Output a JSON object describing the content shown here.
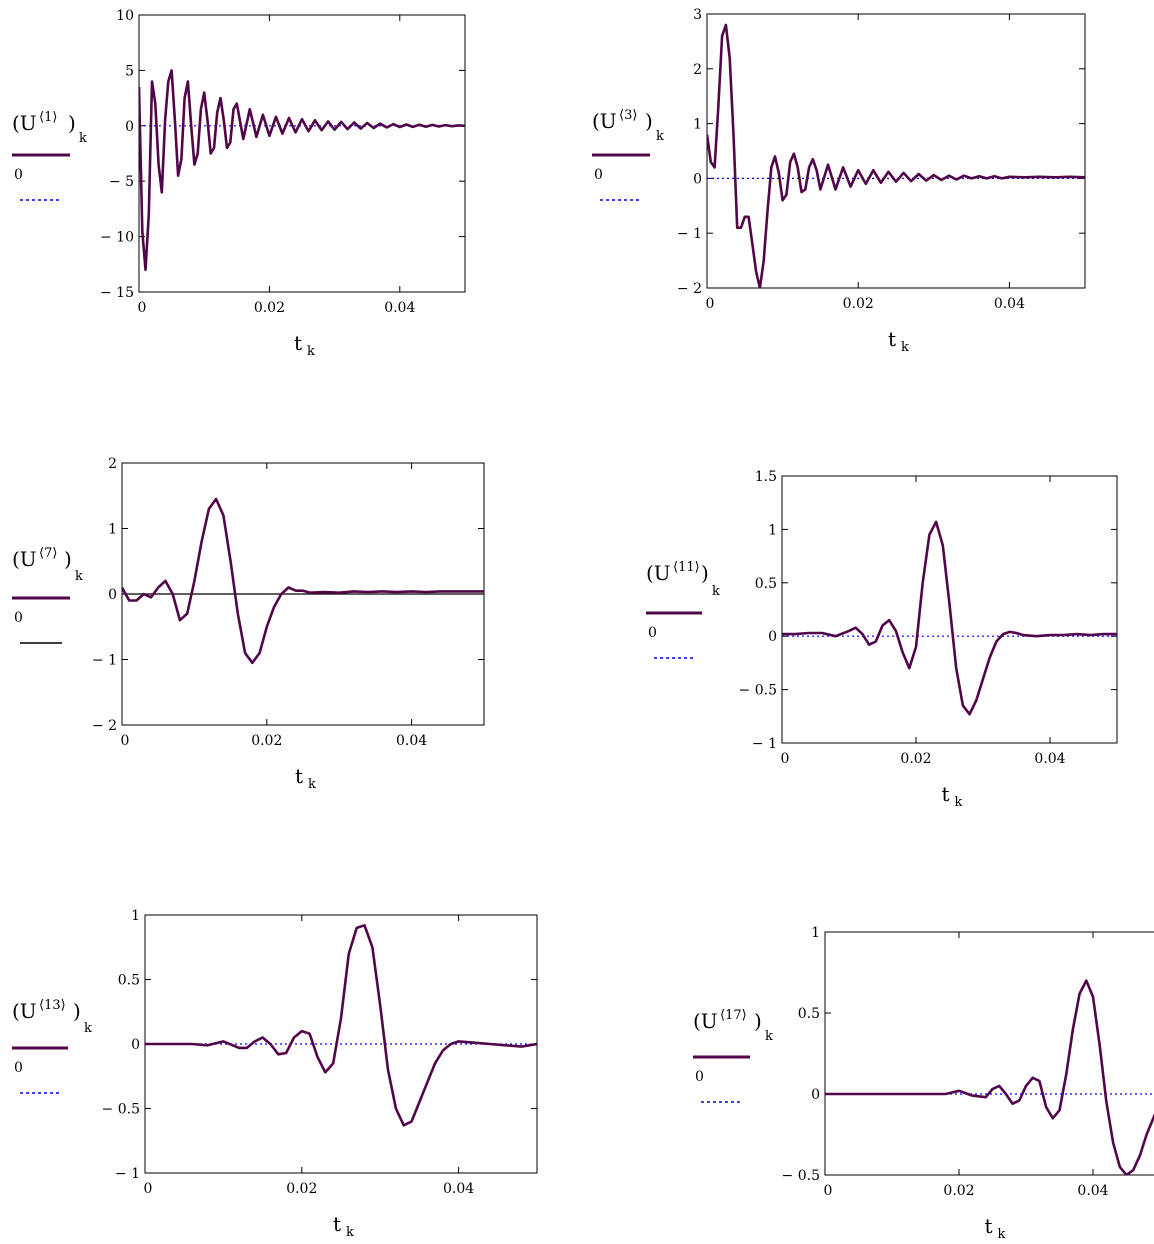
{
  "legend_items": {
    "zero_label": "0"
  },
  "chart_data": [
    {
      "type": "line",
      "series": [
        {
          "name": "(U⟨1⟩)k",
          "color": "#52064a",
          "style": "solid",
          "x": [
            0,
            0.0005,
            0.001,
            0.0015,
            0.002,
            0.0025,
            0.003,
            0.0035,
            0.004,
            0.0045,
            0.005,
            0.0055,
            0.006,
            0.0065,
            0.007,
            0.0075,
            0.008,
            0.0085,
            0.009,
            0.0095,
            0.01,
            0.0105,
            0.011,
            0.0115,
            0.012,
            0.0125,
            0.013,
            0.0135,
            0.014,
            0.0145,
            0.015,
            0.016,
            0.017,
            0.018,
            0.019,
            0.02,
            0.021,
            0.022,
            0.023,
            0.024,
            0.025,
            0.026,
            0.027,
            0.028,
            0.029,
            0.03,
            0.031,
            0.032,
            0.033,
            0.034,
            0.035,
            0.036,
            0.037,
            0.038,
            0.039,
            0.04,
            0.041,
            0.042,
            0.043,
            0.044,
            0.045,
            0.046,
            0.047,
            0.048,
            0.049,
            0.05
          ],
          "y": [
            3.5,
            -9.5,
            -13,
            -8,
            4,
            2,
            -3.5,
            -6,
            0.5,
            4,
            5,
            0.5,
            -4.5,
            -3,
            2.5,
            4,
            0,
            -3.5,
            -2.5,
            1.5,
            3,
            0.5,
            -2.5,
            -2,
            1.2,
            2.5,
            0.5,
            -2,
            -1.5,
            1.5,
            2,
            -1.2,
            1.5,
            -1,
            1,
            -0.9,
            0.8,
            -0.7,
            0.7,
            -0.6,
            0.6,
            -0.5,
            0.5,
            -0.4,
            0.4,
            -0.35,
            0.35,
            -0.3,
            0.3,
            -0.25,
            0.25,
            -0.2,
            0.2,
            -0.15,
            0.15,
            -0.12,
            0.12,
            -0.1,
            0.1,
            -0.08,
            0.08,
            -0.06,
            0.06,
            -0.04,
            0.04,
            0
          ]
        },
        {
          "name": "0",
          "color": "#0000ff",
          "style": "dotted",
          "x": [
            0,
            0.05
          ],
          "y": [
            0,
            0
          ]
        }
      ],
      "xlabel": "tk",
      "ylabel": "(U⟨1⟩)k",
      "xlim": [
        0,
        0.05
      ],
      "ylim": [
        -15,
        10
      ],
      "xticks": [
        "0",
        "0.02",
        "0.04"
      ],
      "yticks": [
        "10",
        "5",
        "0",
        "− 5",
        "− 10",
        "− 15"
      ]
    },
    {
      "type": "line",
      "series": [
        {
          "name": "(U⟨3⟩)k",
          "color": "#52064a",
          "style": "solid",
          "x": [
            0,
            0.0005,
            0.001,
            0.0015,
            0.002,
            0.0025,
            0.003,
            0.0035,
            0.004,
            0.0045,
            0.005,
            0.0055,
            0.006,
            0.0065,
            0.007,
            0.0075,
            0.008,
            0.0085,
            0.009,
            0.0095,
            0.01,
            0.0105,
            0.011,
            0.0115,
            0.012,
            0.0125,
            0.013,
            0.0135,
            0.014,
            0.0145,
            0.015,
            0.016,
            0.017,
            0.018,
            0.019,
            0.02,
            0.021,
            0.022,
            0.023,
            0.024,
            0.025,
            0.026,
            0.027,
            0.028,
            0.029,
            0.03,
            0.031,
            0.032,
            0.033,
            0.034,
            0.035,
            0.036,
            0.037,
            0.038,
            0.039,
            0.04,
            0.042,
            0.044,
            0.046,
            0.048,
            0.05
          ],
          "y": [
            0.8,
            0.3,
            0.2,
            1.3,
            2.6,
            2.8,
            2.2,
            0.8,
            -0.9,
            -0.9,
            -0.7,
            -0.7,
            -1.2,
            -1.7,
            -2,
            -1.5,
            -0.6,
            0.2,
            0.4,
            0.1,
            -0.4,
            -0.3,
            0.3,
            0.45,
            0.2,
            -0.25,
            -0.2,
            0.2,
            0.35,
            0.15,
            -0.2,
            0.25,
            -0.2,
            0.2,
            -0.15,
            0.15,
            -0.1,
            0.15,
            -0.08,
            0.12,
            -0.06,
            0.1,
            -0.05,
            0.08,
            -0.04,
            0.06,
            -0.03,
            0.05,
            -0.02,
            0.05,
            0,
            0.04,
            0,
            0.04,
            0,
            0.03,
            0.02,
            0.03,
            0.02,
            0.03,
            0.02
          ]
        },
        {
          "name": "0",
          "color": "#0000ff",
          "style": "dotted",
          "x": [
            0,
            0.05
          ],
          "y": [
            0,
            0
          ]
        }
      ],
      "xlabel": "tk",
      "ylabel": "(U⟨3⟩)k",
      "xlim": [
        0,
        0.05
      ],
      "ylim": [
        -2,
        3
      ],
      "xticks": [
        "0",
        "0.02",
        "0.04"
      ],
      "yticks": [
        "3",
        "2",
        "1",
        "0",
        "− 1",
        "− 2"
      ]
    },
    {
      "type": "line",
      "series": [
        {
          "name": "(U⟨7⟩)k",
          "color": "#52064a",
          "style": "solid",
          "x": [
            0,
            0.001,
            0.002,
            0.003,
            0.004,
            0.005,
            0.006,
            0.007,
            0.008,
            0.009,
            0.01,
            0.011,
            0.012,
            0.013,
            0.014,
            0.015,
            0.016,
            0.017,
            0.018,
            0.019,
            0.02,
            0.021,
            0.022,
            0.023,
            0.024,
            0.025,
            0.026,
            0.028,
            0.03,
            0.032,
            0.034,
            0.036,
            0.038,
            0.04,
            0.042,
            0.044,
            0.046,
            0.048,
            0.05
          ],
          "y": [
            0.1,
            -0.1,
            -0.1,
            0,
            -0.05,
            0.1,
            0.2,
            0.0,
            -0.4,
            -0.3,
            0.2,
            0.8,
            1.3,
            1.45,
            1.2,
            0.5,
            -0.3,
            -0.9,
            -1.05,
            -0.9,
            -0.5,
            -0.2,
            0,
            0.1,
            0.05,
            0.05,
            0.02,
            0.03,
            0.02,
            0.04,
            0.03,
            0.04,
            0.03,
            0.04,
            0.03,
            0.04,
            0.04,
            0.04,
            0.04
          ]
        },
        {
          "name": "0",
          "color": "#000000",
          "style": "solid",
          "x": [
            0,
            0.05
          ],
          "y": [
            0,
            0
          ]
        }
      ],
      "xlabel": "tk",
      "ylabel": "(U⟨7⟩)k",
      "xlim": [
        0,
        0.05
      ],
      "ylim": [
        -2,
        2
      ],
      "xticks": [
        "0",
        "0.02",
        "0.04"
      ],
      "yticks": [
        "2",
        "1",
        "0",
        "− 1",
        "− 2"
      ]
    },
    {
      "type": "line",
      "series": [
        {
          "name": "(U⟨11⟩)k",
          "color": "#52064a",
          "style": "solid",
          "x": [
            0,
            0.002,
            0.004,
            0.006,
            0.008,
            0.01,
            0.011,
            0.012,
            0.013,
            0.014,
            0.015,
            0.016,
            0.017,
            0.018,
            0.019,
            0.02,
            0.021,
            0.022,
            0.023,
            0.024,
            0.025,
            0.026,
            0.027,
            0.028,
            0.029,
            0.03,
            0.031,
            0.032,
            0.033,
            0.034,
            0.035,
            0.036,
            0.038,
            0.04,
            0.042,
            0.044,
            0.046,
            0.048,
            0.05
          ],
          "y": [
            0.02,
            0.02,
            0.03,
            0.03,
            0.0,
            0.05,
            0.08,
            0.02,
            -0.08,
            -0.05,
            0.1,
            0.15,
            0.05,
            -0.15,
            -0.3,
            -0.1,
            0.5,
            0.95,
            1.07,
            0.85,
            0.3,
            -0.3,
            -0.65,
            -0.73,
            -0.6,
            -0.4,
            -0.2,
            -0.05,
            0.02,
            0.04,
            0.03,
            0.01,
            0.0,
            0.01,
            0.01,
            0.02,
            0.01,
            0.02,
            0.02
          ]
        },
        {
          "name": "0",
          "color": "#0000ff",
          "style": "dotted",
          "x": [
            0,
            0.05
          ],
          "y": [
            0,
            0
          ]
        }
      ],
      "xlabel": "tk",
      "ylabel": "(U⟨11⟩)k",
      "xlim": [
        0,
        0.05
      ],
      "ylim": [
        -1,
        1.5
      ],
      "xticks": [
        "0",
        "0.02",
        "0.04"
      ],
      "yticks": [
        "1.5",
        "1",
        "0.5",
        "0",
        "− 0.5",
        "− 1"
      ]
    },
    {
      "type": "line",
      "series": [
        {
          "name": "(U⟨13⟩)k",
          "color": "#52064a",
          "style": "solid",
          "x": [
            0,
            0.002,
            0.004,
            0.006,
            0.008,
            0.01,
            0.012,
            0.013,
            0.014,
            0.015,
            0.016,
            0.017,
            0.018,
            0.019,
            0.02,
            0.021,
            0.022,
            0.023,
            0.024,
            0.025,
            0.026,
            0.027,
            0.028,
            0.029,
            0.03,
            0.031,
            0.032,
            0.033,
            0.034,
            0.035,
            0.036,
            0.037,
            0.038,
            0.039,
            0.04,
            0.042,
            0.044,
            0.046,
            0.048,
            0.05
          ],
          "y": [
            0.0,
            0.0,
            0.0,
            0.0,
            -0.01,
            0.02,
            -0.03,
            -0.03,
            0.02,
            0.05,
            0.0,
            -0.08,
            -0.07,
            0.05,
            0.1,
            0.08,
            -0.1,
            -0.22,
            -0.15,
            0.2,
            0.7,
            0.9,
            0.92,
            0.75,
            0.3,
            -0.2,
            -0.5,
            -0.63,
            -0.6,
            -0.45,
            -0.3,
            -0.15,
            -0.05,
            0.0,
            0.02,
            0.01,
            0.0,
            -0.01,
            -0.02,
            0.0
          ]
        },
        {
          "name": "0",
          "color": "#0000ff",
          "style": "dotted",
          "x": [
            0,
            0.05
          ],
          "y": [
            0,
            0
          ]
        }
      ],
      "xlabel": "tk",
      "ylabel": "(U⟨13⟩)k",
      "xlim": [
        0,
        0.05
      ],
      "ylim": [
        -1,
        1
      ],
      "xticks": [
        "0",
        "0.02",
        "0.04"
      ],
      "yticks": [
        "1",
        "0.5",
        "0",
        "− 0.5",
        "− 1"
      ]
    },
    {
      "type": "line",
      "series": [
        {
          "name": "(U⟨17⟩)k",
          "color": "#52064a",
          "style": "solid",
          "x": [
            0,
            0.004,
            0.008,
            0.012,
            0.016,
            0.018,
            0.02,
            0.022,
            0.024,
            0.025,
            0.026,
            0.027,
            0.028,
            0.029,
            0.03,
            0.031,
            0.032,
            0.033,
            0.034,
            0.035,
            0.036,
            0.037,
            0.038,
            0.039,
            0.04,
            0.041,
            0.042,
            0.043,
            0.044,
            0.045,
            0.046,
            0.047,
            0.048,
            0.049,
            0.05
          ],
          "y": [
            0.0,
            0.0,
            0.0,
            0.0,
            0.0,
            0.0,
            0.02,
            -0.01,
            -0.02,
            0.03,
            0.05,
            0.0,
            -0.06,
            -0.04,
            0.05,
            0.1,
            0.08,
            -0.08,
            -0.15,
            -0.1,
            0.12,
            0.4,
            0.62,
            0.7,
            0.6,
            0.3,
            -0.05,
            -0.3,
            -0.45,
            -0.5,
            -0.47,
            -0.38,
            -0.25,
            -0.15,
            -0.05
          ]
        },
        {
          "name": "0",
          "color": "#0000ff",
          "style": "dotted",
          "x": [
            0,
            0.05
          ],
          "y": [
            0,
            0
          ]
        }
      ],
      "xlabel": "tk",
      "ylabel": "(U⟨17⟩)k",
      "xlim": [
        0,
        0.05
      ],
      "ylim": [
        -0.5,
        1
      ],
      "xticks": [
        "0",
        "0.02",
        "0.04"
      ],
      "yticks": [
        "1",
        "0.5",
        "0",
        "− 0.5"
      ]
    }
  ]
}
